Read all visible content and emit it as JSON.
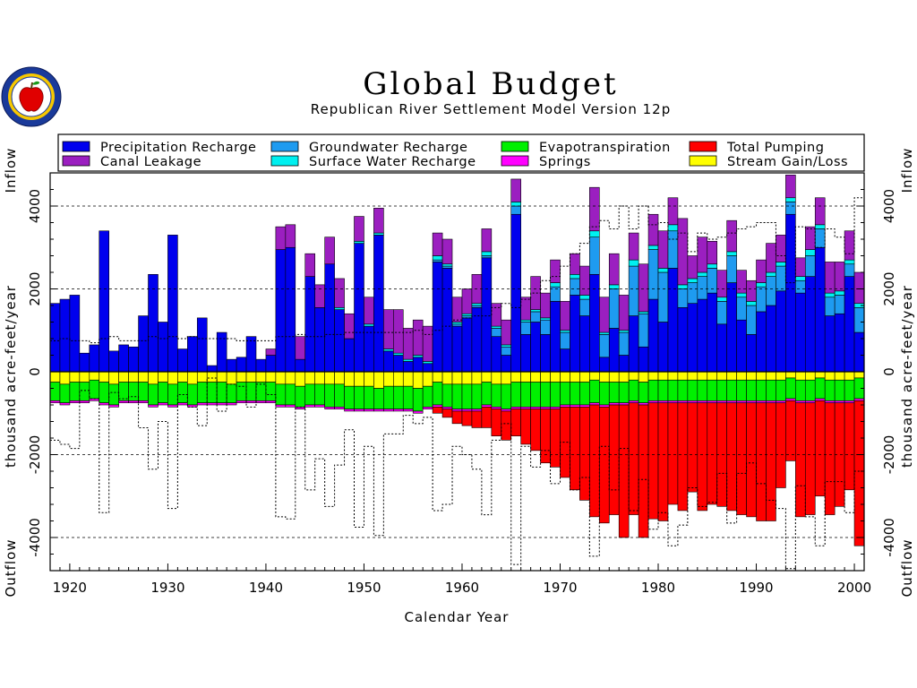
{
  "title": "Global Budget",
  "subtitle": "Republican River Settlement Model Version 12p",
  "colors": {
    "precipitation_recharge": "#0000ee",
    "canal_leakage": "#9b1fc0",
    "groundwater_recharge": "#1e9bf0",
    "surface_water_recharge": "#00f0f0",
    "evapotranspiration": "#00f000",
    "springs": "#ff00ff",
    "total_pumping": "#ff0000",
    "stream_gain_loss": "#ffff00"
  },
  "logo": {
    "icon": "apple-seal-logo"
  },
  "chart_data": {
    "type": "bar",
    "title": "Global Budget",
    "subtitle": "Republican River Settlement Model Version 12p",
    "xlabel": "Calendar Year",
    "ylabel": "thousand acre-feet/year",
    "ylabel_top": "Inflow",
    "ylabel_bottom": "Outflow",
    "xlim": [
      1918,
      2001
    ],
    "ylim": [
      -4800,
      4800
    ],
    "x_ticks": [
      1920,
      1930,
      1940,
      1950,
      1960,
      1970,
      1980,
      1990,
      2000
    ],
    "y_ticks": [
      -4000,
      -2000,
      0,
      2000,
      4000
    ],
    "y_tick_labels": [
      "-4000",
      "-2000",
      "0",
      "2000",
      "4000"
    ],
    "grid": "dashed horizontal at ±2000 and ±4000",
    "legend_position": "top",
    "legend": [
      "Precipitation Recharge",
      "Groundwater Recharge",
      "Evapotranspiration",
      "Total Pumping",
      "Canal Leakage",
      "Surface Water Recharge",
      "Springs",
      "Stream Gain/Loss"
    ],
    "years": [
      1918,
      1919,
      1920,
      1921,
      1922,
      1923,
      1924,
      1925,
      1926,
      1927,
      1928,
      1929,
      1930,
      1931,
      1932,
      1933,
      1934,
      1935,
      1936,
      1937,
      1938,
      1939,
      1940,
      1941,
      1942,
      1943,
      1944,
      1945,
      1946,
      1947,
      1948,
      1949,
      1950,
      1951,
      1952,
      1953,
      1954,
      1955,
      1956,
      1957,
      1958,
      1959,
      1960,
      1961,
      1962,
      1963,
      1964,
      1965,
      1966,
      1967,
      1968,
      1969,
      1970,
      1971,
      1972,
      1973,
      1974,
      1975,
      1976,
      1977,
      1978,
      1979,
      1980,
      1981,
      1982,
      1983,
      1984,
      1985,
      1986,
      1987,
      1988,
      1989,
      1990,
      1991,
      1992,
      1993,
      1994,
      1995,
      1996,
      1997,
      1998,
      1999,
      2000
    ],
    "series": [
      {
        "name": "Precipitation Recharge",
        "values": [
          1650,
          1750,
          1850,
          450,
          650,
          3400,
          500,
          650,
          600,
          1350,
          2350,
          1200,
          3300,
          550,
          850,
          1300,
          150,
          950,
          300,
          350,
          850,
          300,
          400,
          2950,
          3000,
          300,
          2300,
          1550,
          2600,
          1500,
          800,
          3100,
          1100,
          3300,
          500,
          400,
          250,
          350,
          200,
          2650,
          2500,
          1100,
          1300,
          1550,
          2750,
          850,
          400,
          3800,
          900,
          1200,
          900,
          1700,
          550,
          1850,
          1350,
          2350,
          350,
          1050,
          400,
          1350,
          600,
          1750,
          1200,
          2500,
          1550,
          1650,
          1750,
          1900,
          1150,
          2150,
          1250,
          900,
          1450,
          1600,
          1950,
          3800,
          1900,
          2300,
          3000,
          1350,
          1400,
          2300,
          950
        ]
      },
      {
        "name": "Groundwater Recharge",
        "values": [
          0,
          0,
          0,
          0,
          0,
          0,
          0,
          0,
          0,
          0,
          0,
          0,
          0,
          0,
          0,
          0,
          0,
          0,
          0,
          0,
          0,
          0,
          0,
          0,
          0,
          0,
          0,
          0,
          0,
          0,
          0,
          0,
          0,
          0,
          0,
          0,
          0,
          0,
          0,
          50,
          50,
          50,
          50,
          50,
          50,
          200,
          200,
          200,
          300,
          250,
          350,
          350,
          400,
          400,
          400,
          900,
          550,
          950,
          550,
          1200,
          800,
          1200,
          1200,
          900,
          450,
          500,
          550,
          600,
          550,
          650,
          550,
          700,
          600,
          700,
          600,
          300,
          300,
          500,
          450,
          450,
          450,
          300,
          600
        ]
      },
      {
        "name": "Surface Water Recharge",
        "values": [
          0,
          0,
          0,
          0,
          0,
          0,
          0,
          0,
          0,
          0,
          0,
          0,
          0,
          0,
          0,
          0,
          0,
          0,
          0,
          0,
          0,
          0,
          0,
          0,
          0,
          0,
          0,
          0,
          0,
          50,
          0,
          50,
          50,
          50,
          50,
          50,
          50,
          50,
          50,
          100,
          50,
          50,
          50,
          50,
          100,
          50,
          50,
          100,
          50,
          50,
          50,
          100,
          50,
          100,
          100,
          150,
          50,
          100,
          50,
          150,
          50,
          100,
          100,
          150,
          100,
          100,
          100,
          100,
          100,
          100,
          100,
          100,
          100,
          100,
          100,
          100,
          100,
          150,
          100,
          100,
          100,
          100,
          100
        ]
      },
      {
        "name": "Canal Leakage",
        "values": [
          0,
          0,
          0,
          0,
          0,
          0,
          0,
          0,
          0,
          0,
          0,
          0,
          0,
          0,
          0,
          0,
          0,
          0,
          0,
          0,
          0,
          0,
          150,
          550,
          550,
          550,
          550,
          550,
          650,
          700,
          600,
          600,
          650,
          600,
          950,
          1050,
          750,
          850,
          850,
          550,
          600,
          600,
          600,
          700,
          550,
          550,
          600,
          550,
          550,
          800,
          600,
          550,
          700,
          500,
          700,
          1050,
          850,
          750,
          850,
          650,
          1150,
          750,
          900,
          650,
          1600,
          550,
          850,
          550,
          650,
          750,
          550,
          500,
          550,
          700,
          650,
          550,
          450,
          550,
          650,
          750,
          700,
          700,
          750
        ]
      },
      {
        "name": "Stream Gain/Loss",
        "values": [
          -250,
          -300,
          -250,
          -250,
          -200,
          -250,
          -300,
          -250,
          -250,
          -250,
          -300,
          -250,
          -300,
          -250,
          -300,
          -250,
          -250,
          -250,
          -300,
          -250,
          -250,
          -250,
          -250,
          -300,
          -300,
          -350,
          -300,
          -300,
          -300,
          -300,
          -350,
          -350,
          -350,
          -400,
          -350,
          -350,
          -350,
          -400,
          -350,
          -250,
          -300,
          -300,
          -300,
          -300,
          -250,
          -300,
          -300,
          -250,
          -250,
          -250,
          -250,
          -250,
          -250,
          -250,
          -250,
          -200,
          -250,
          -250,
          -250,
          -200,
          -250,
          -200,
          -200,
          -200,
          -200,
          -200,
          -200,
          -200,
          -200,
          -200,
          -200,
          -200,
          -200,
          -200,
          -200,
          -150,
          -200,
          -200,
          -150,
          -200,
          -200,
          -200,
          -150
        ]
      },
      {
        "name": "Evapotranspiration",
        "values": [
          -450,
          -450,
          -450,
          -450,
          -450,
          -500,
          -500,
          -450,
          -450,
          -450,
          -500,
          -500,
          -500,
          -500,
          -500,
          -500,
          -500,
          -500,
          -450,
          -450,
          -450,
          -450,
          -450,
          -500,
          -500,
          -500,
          -500,
          -500,
          -550,
          -550,
          -550,
          -550,
          -550,
          -500,
          -550,
          -550,
          -550,
          -550,
          -500,
          -550,
          -550,
          -600,
          -600,
          -600,
          -550,
          -550,
          -600,
          -600,
          -600,
          -600,
          -600,
          -600,
          -550,
          -550,
          -550,
          -550,
          -550,
          -500,
          -500,
          -500,
          -500,
          -500,
          -500,
          -500,
          -500,
          -500,
          -500,
          -500,
          -500,
          -500,
          -500,
          -500,
          -500,
          -500,
          -500,
          -500,
          -500,
          -500,
          -500,
          -500,
          -500,
          -500,
          -500
        ]
      },
      {
        "name": "Springs",
        "values": [
          -50,
          -50,
          -50,
          -50,
          -50,
          -50,
          -50,
          -50,
          -50,
          -50,
          -50,
          -50,
          -50,
          -50,
          -50,
          -50,
          -50,
          -50,
          -50,
          -50,
          -50,
          -50,
          -50,
          -50,
          -50,
          -50,
          -50,
          -50,
          -50,
          -50,
          -50,
          -50,
          -50,
          -50,
          -50,
          -50,
          -50,
          -50,
          -50,
          -50,
          -50,
          -50,
          -50,
          -50,
          -50,
          -50,
          -50,
          -50,
          -50,
          -50,
          -50,
          -50,
          -50,
          -50,
          -50,
          -50,
          -50,
          -50,
          -50,
          -50,
          -50,
          -50,
          -50,
          -50,
          -50,
          -50,
          -50,
          -50,
          -50,
          -50,
          -50,
          -50,
          -50,
          -50,
          -50,
          -50,
          -50,
          -50,
          -50,
          -50,
          -50,
          -50,
          -50
        ]
      },
      {
        "name": "Total Pumping",
        "values": [
          0,
          0,
          0,
          0,
          0,
          0,
          0,
          0,
          0,
          0,
          0,
          0,
          0,
          0,
          0,
          0,
          0,
          0,
          0,
          0,
          0,
          0,
          0,
          0,
          0,
          0,
          0,
          0,
          0,
          0,
          0,
          0,
          0,
          0,
          0,
          0,
          0,
          0,
          0,
          -150,
          -200,
          -300,
          -350,
          -400,
          -500,
          -650,
          -700,
          -650,
          -850,
          -1000,
          -1300,
          -1400,
          -1700,
          -2000,
          -2250,
          -2700,
          -2800,
          -2650,
          -3200,
          -2700,
          -3200,
          -2800,
          -2850,
          -2450,
          -2600,
          -2150,
          -2600,
          -2450,
          -2500,
          -2600,
          -2700,
          -2750,
          -2850,
          -2850,
          -2050,
          -1450,
          -2750,
          -2700,
          -2300,
          -2700,
          -2500,
          -2100,
          -3500
        ]
      }
    ]
  }
}
